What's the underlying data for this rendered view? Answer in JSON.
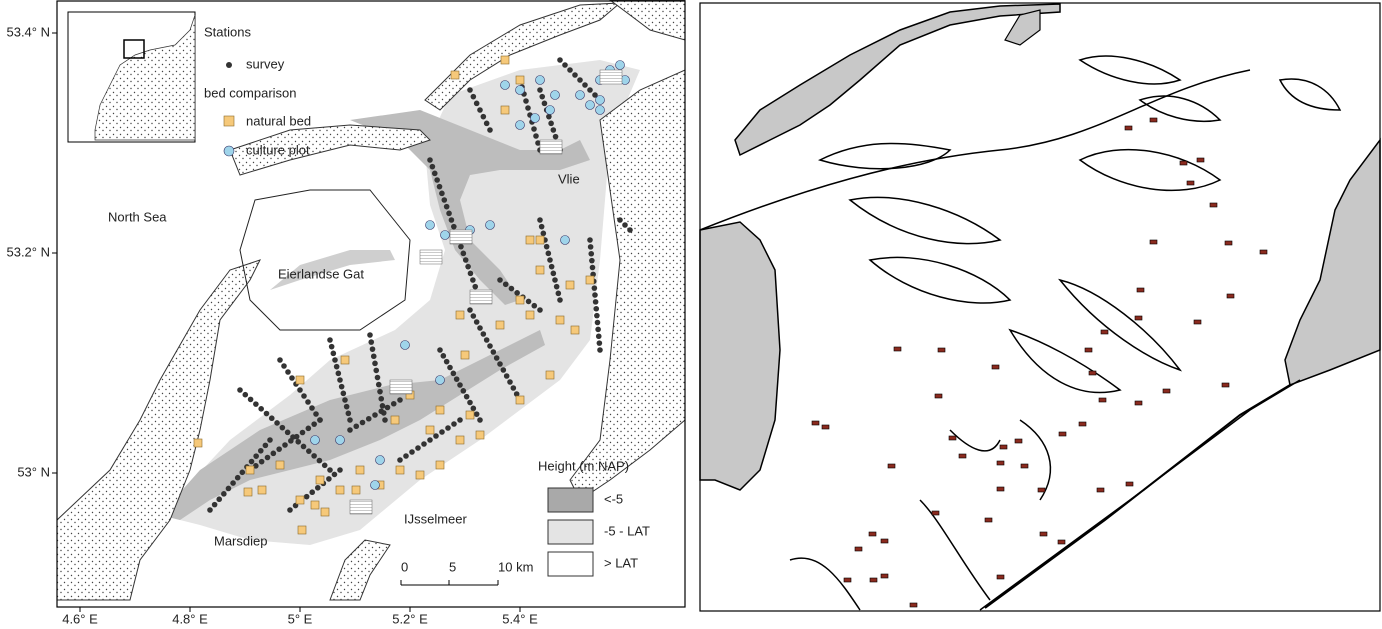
{
  "left_map": {
    "lat_labels": [
      "53.4° N",
      "53.2° N",
      "53° N"
    ],
    "lon_labels": [
      "4.6° E",
      "4.8° E",
      "5° E",
      "5.2° E",
      "5.4° E"
    ],
    "legend": {
      "title": "Stations",
      "survey": "survey",
      "bed_comparison": "bed comparison",
      "natural_bed": "natural bed",
      "culture_plot": "culture plot"
    },
    "place_labels": {
      "north_sea": "North Sea",
      "eierlandse_gat": "Eierlandse Gat",
      "vlie": "Vlie",
      "marsdiep": "Marsdiep",
      "ijsselmeer": "IJsselmeer"
    },
    "height_legend": {
      "title": "Height (m NAP)",
      "items": [
        "<-5",
        "-5 - LAT",
        "> LAT"
      ]
    },
    "scale_labels": [
      "0",
      "5",
      "10 km"
    ]
  }
}
